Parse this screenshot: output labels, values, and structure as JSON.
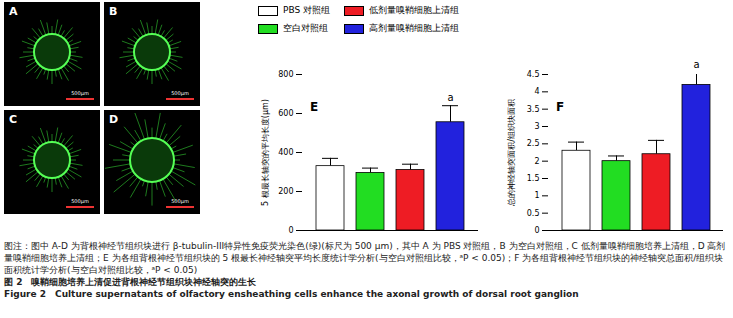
{
  "images": [
    {
      "label": "A",
      "scale_bar": "500μm"
    },
    {
      "label": "B",
      "scale_bar": "500μm"
    },
    {
      "label": "C",
      "scale_bar": "500μm"
    },
    {
      "label": "D",
      "scale_bar": "500μm"
    }
  ],
  "chart_data": [
    {
      "type": "bar",
      "title": "E",
      "categories": [
        "PBS 对照组",
        "空白对照组",
        "低剂量嗅鞘细胞上清组",
        "高剂量嗅鞘细胞上清组"
      ],
      "colors": [
        "#ffffff",
        "#22dd22",
        "#ee1c24",
        "#2222dd"
      ],
      "values": [
        330,
        295,
        310,
        555
      ],
      "errors": [
        40,
        25,
        30,
        85
      ],
      "y_label": "5 根最长轴突的平均长度(μm)",
      "ylim": [
        0,
        800
      ],
      "yticks": [
        0,
        200,
        400,
        600,
        800
      ],
      "tick_labels": "y",
      "legend": "top",
      "annotations": [
        {
          "category": "高剂量嗅鞘细胞上清组",
          "text": "a"
        }
      ]
    },
    {
      "type": "bar",
      "title": "F",
      "categories": [
        "PBS 对照组",
        "空白对照组",
        "低剂量嗅鞘细胞上清组",
        "高剂量嗅鞘细胞上清组"
      ],
      "colors": [
        "#ffffff",
        "#22dd22",
        "#ee1c24",
        "#2222dd"
      ],
      "values": [
        2.3,
        2.0,
        2.2,
        4.2
      ],
      "errors": [
        0.25,
        0.15,
        0.4,
        0.35
      ],
      "y_label": "总的神经轴突面积/组织块面积",
      "ylim": [
        0,
        4.5
      ],
      "yticks": [
        0,
        0.5,
        1,
        1.5,
        2,
        2.5,
        3,
        3.5,
        4,
        4.5
      ],
      "tick_labels": "y",
      "legend": "top",
      "annotations": [
        {
          "category": "高剂量嗅鞘细胞上清组",
          "text": "a"
        }
      ]
    }
  ],
  "caption": [
    "图注：图中 A-D 为背根神经节组织块进行 β-tubulin-III特异性免疫荧光染色(绿)(标尺为 500 μm)，其中 A 为 PBS 对照组，B 为空白对照组，C 低剂量嗅鞘细胞培养上清组，D 高剂量嗅鞘细胞培养上清组；E 为各组背根神经节组织块的 5 根最长神经轴突平均长度统计学分析(与空白对照组比较，ᵃP < 0.05)；F 为各组背根神经节组织块的神经轴突总面积/组织块面积统计学分析(与空白对照组比较，ᵃP < 0.05)",
    "图 2　嗅鞘细胞培养上清促进背根神经节组织块神经轴突的生长",
    "Figure 2　Culture supernatants of olfactory ensheathing cells enhance the axonal growth of dorsal root ganglion"
  ]
}
